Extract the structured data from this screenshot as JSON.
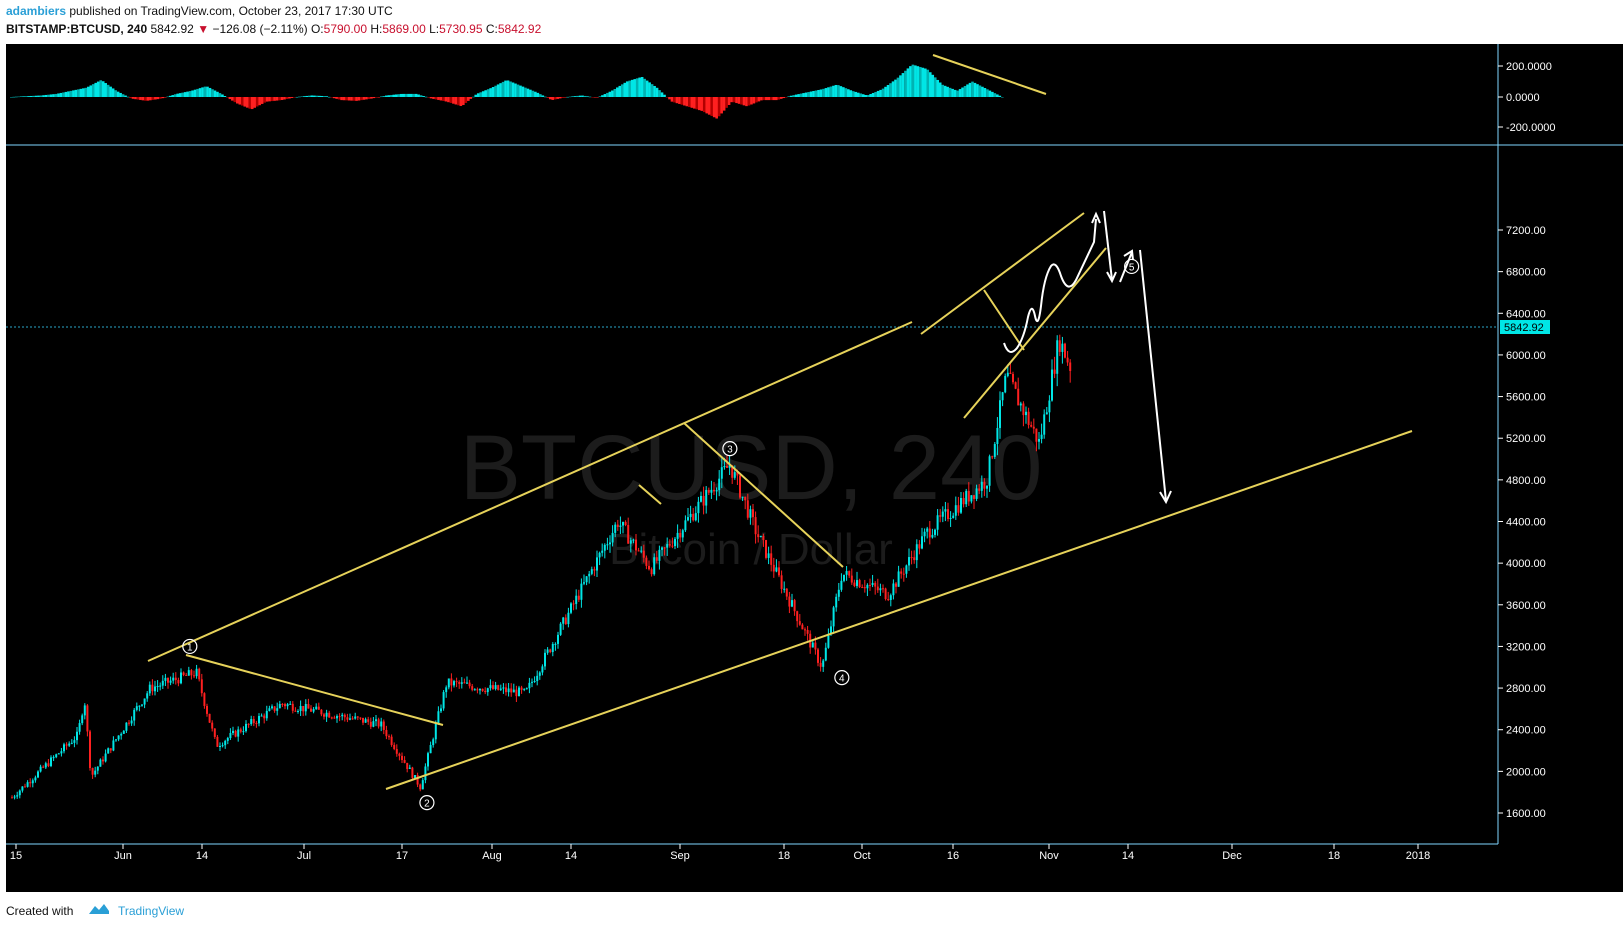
{
  "header": {
    "author": "adambiers",
    "published_text": "published on TradingView.com, October 23, 2017 17:30 UTC",
    "symbol": "BITSTAMP:BTCUSD, 240",
    "last": "5842.92",
    "change": "−126.08 (−2.11%)",
    "open_label": "O:",
    "open": "5790.00",
    "high_label": "H:",
    "high": "5869.00",
    "low_label": "L:",
    "low": "5730.95",
    "close_label": "C:",
    "close": "5842.92"
  },
  "watermark": {
    "title": "BTCUSD, 240",
    "subtitle": "Bitcoin / Dollar"
  },
  "footer": {
    "created": "Created with",
    "brand": "TradingView"
  },
  "colors": {
    "bg": "#000000",
    "up": "#00e6e6",
    "down": "#ff2020",
    "trend": "#e6d25a",
    "axis": "#ffffff",
    "accent": "#2a9fd6"
  },
  "chart_data": [
    {
      "type": "candlestick",
      "title": "BITSTAMP:BTCUSD, 240",
      "ylim": [
        1400,
        7500
      ],
      "y_ticks": [
        1600,
        2000,
        2400,
        2800,
        3200,
        3600,
        4000,
        4400,
        4800,
        5200,
        5600,
        6000,
        6400,
        6800,
        7200
      ],
      "y_tick_labels": [
        "1600.00",
        "2000.00",
        "2400.00",
        "2800.00",
        "3200.00",
        "3600.00",
        "4000.00",
        "4400.00",
        "4800.00",
        "5200.00",
        "5600.00",
        "6000.00",
        "6400.00",
        "6800.00",
        "7200.00"
      ],
      "x_tick_labels": [
        "15",
        "Jun",
        "14",
        "Jul",
        "17",
        "Aug",
        "14",
        "Sep",
        "18",
        "Oct",
        "16",
        "Nov",
        "14",
        "Dec",
        "18",
        "2018"
      ],
      "last_price_label": "5842.92",
      "last_price": 5842.92,
      "price_path": [
        {
          "x": "May 15",
          "y": 1750
        },
        {
          "x": "May 25",
          "y": 2350
        },
        {
          "x": "May 26",
          "y": 2700
        },
        {
          "x": "May 27",
          "y": 1950
        },
        {
          "x": "Jun 5",
          "y": 2800
        },
        {
          "x": "Jun 12",
          "y": 2950
        },
        {
          "x": "Jun 15",
          "y": 2250
        },
        {
          "x": "Jun 25",
          "y": 2650
        },
        {
          "x": "Jul 10",
          "y": 2450
        },
        {
          "x": "Jul 16",
          "y": 1850
        },
        {
          "x": "Jul 20",
          "y": 2850
        },
        {
          "x": "Aug 1",
          "y": 2750
        },
        {
          "x": "Aug 15",
          "y": 4400
        },
        {
          "x": "Aug 20",
          "y": 3950
        },
        {
          "x": "Sep 1",
          "y": 4950
        },
        {
          "x": "Sep 5",
          "y": 4300
        },
        {
          "x": "Sep 15",
          "y": 3000
        },
        {
          "x": "Sep 18",
          "y": 3900
        },
        {
          "x": "Sep 25",
          "y": 3700
        },
        {
          "x": "Oct 1",
          "y": 4300
        },
        {
          "x": "Oct 10",
          "y": 4800
        },
        {
          "x": "Oct 13",
          "y": 5800
        },
        {
          "x": "Oct 18",
          "y": 5150
        },
        {
          "x": "Oct 21",
          "y": 6150
        },
        {
          "x": "Oct 23",
          "y": 5842.92
        }
      ],
      "wave_labels": [
        {
          "label": "1",
          "x": "Jun 11",
          "y": 3200
        },
        {
          "label": "2",
          "x": "Jul 17",
          "y": 1700
        },
        {
          "label": "3",
          "x": "Sep 1",
          "y": 5100
        },
        {
          "label": "4",
          "x": "Sep 18",
          "y": 2900
        },
        {
          "label": "5",
          "x": "Nov 1",
          "y": 6850
        }
      ]
    },
    {
      "type": "bar",
      "title": "",
      "ylim": [
        -300,
        300
      ],
      "y_tick_labels": [
        "200.0000",
        "0.0000",
        "-200.0000"
      ],
      "series": [
        {
          "values": [
            0,
            5,
            10,
            20,
            40,
            60,
            110,
            40,
            -10,
            -25,
            -10,
            20,
            40,
            70,
            20,
            -40,
            -80,
            -30,
            -20,
            0,
            10,
            5,
            -20,
            -25,
            -10,
            10,
            20,
            20,
            -10,
            -30,
            -60,
            20,
            60,
            110,
            70,
            30,
            -20,
            0,
            10,
            -5,
            40,
            100,
            130,
            60,
            -30,
            -60,
            -90,
            -140,
            -30,
            -60,
            -20,
            -20,
            10,
            30,
            50,
            80,
            40,
            10,
            50,
            120,
            210,
            180,
            80,
            40,
            100,
            50,
            0
          ]
        }
      ]
    }
  ]
}
